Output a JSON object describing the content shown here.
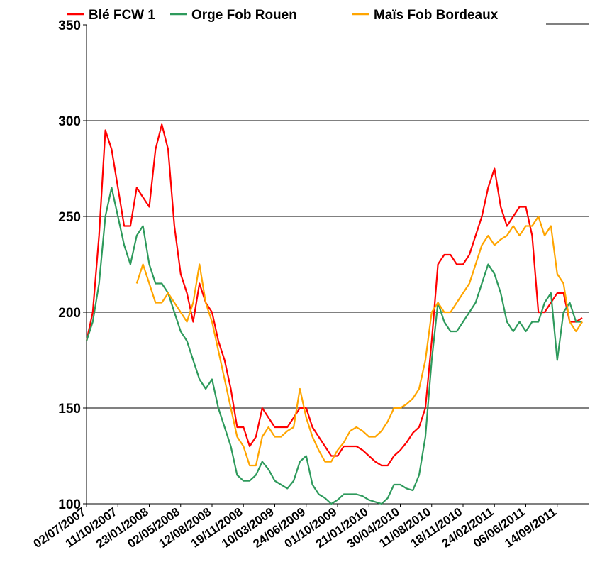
{
  "chart_data": {
    "type": "line",
    "categories": [
      "02/07/2007",
      null,
      null,
      null,
      null,
      "11/10/2007",
      null,
      null,
      null,
      null,
      "23/01/2008",
      null,
      null,
      null,
      null,
      "02/05/2008",
      null,
      null,
      null,
      null,
      "12/08/2008",
      null,
      null,
      null,
      null,
      "19/11/2008",
      null,
      null,
      null,
      null,
      "10/03/2009",
      null,
      null,
      null,
      null,
      "24/06/2009",
      null,
      null,
      null,
      null,
      "01/10/2009",
      null,
      null,
      null,
      null,
      "21/01/2010",
      null,
      null,
      null,
      null,
      "30/04/2010",
      null,
      null,
      null,
      null,
      "11/08/2010",
      null,
      null,
      null,
      null,
      "18/11/2010",
      null,
      null,
      null,
      null,
      "24/02/2011",
      null,
      null,
      null,
      null,
      "06/06/2011",
      null,
      null,
      null,
      null,
      "14/09/2011",
      null,
      null,
      null,
      null
    ],
    "series": [
      {
        "name": "Blé FCW 1",
        "color": "#ff0000",
        "values": [
          185,
          200,
          240,
          295,
          285,
          265,
          245,
          245,
          265,
          260,
          255,
          285,
          298,
          285,
          245,
          220,
          210,
          195,
          215,
          205,
          200,
          185,
          175,
          160,
          140,
          140,
          130,
          135,
          150,
          145,
          140,
          140,
          140,
          145,
          150,
          150,
          140,
          135,
          130,
          125,
          125,
          130,
          130,
          130,
          128,
          125,
          122,
          120,
          120,
          125,
          128,
          132,
          137,
          140,
          150,
          185,
          225,
          230,
          230,
          225,
          225,
          230,
          240,
          250,
          265,
          275,
          255,
          245,
          250,
          255,
          255,
          240,
          200,
          200,
          205,
          210,
          210,
          195,
          195,
          197
        ]
      },
      {
        "name": "Orge Fob Rouen",
        "color": "#2e9a5c",
        "values": [
          185,
          195,
          215,
          250,
          265,
          250,
          235,
          225,
          240,
          245,
          225,
          215,
          215,
          210,
          200,
          190,
          185,
          175,
          165,
          160,
          165,
          150,
          140,
          130,
          115,
          112,
          112,
          115,
          122,
          118,
          112,
          110,
          108,
          112,
          122,
          125,
          110,
          105,
          103,
          100,
          102,
          105,
          105,
          105,
          104,
          102,
          101,
          100,
          103,
          110,
          110,
          108,
          107,
          115,
          135,
          175,
          205,
          195,
          190,
          190,
          195,
          200,
          205,
          215,
          225,
          220,
          210,
          195,
          190,
          195,
          190,
          195,
          195,
          205,
          210,
          175,
          200,
          205,
          195,
          195
        ]
      },
      {
        "name": "Maïs Fob Bordeaux",
        "color": "#ffa500",
        "values": [
          null,
          null,
          null,
          null,
          null,
          null,
          null,
          null,
          215,
          225,
          215,
          205,
          205,
          210,
          205,
          200,
          195,
          205,
          225,
          205,
          195,
          180,
          165,
          150,
          135,
          130,
          120,
          120,
          135,
          140,
          135,
          135,
          138,
          140,
          160,
          145,
          135,
          128,
          122,
          122,
          128,
          132,
          138,
          140,
          138,
          135,
          135,
          138,
          143,
          150,
          150,
          152,
          155,
          160,
          175,
          200,
          205,
          200,
          200,
          205,
          210,
          215,
          225,
          235,
          240,
          235,
          238,
          240,
          245,
          240,
          245,
          245,
          250,
          240,
          245,
          220,
          215,
          195,
          190,
          195
        ]
      }
    ],
    "ylim": [
      100,
      350
    ],
    "yticks": [
      100,
      150,
      200,
      250,
      300,
      350
    ],
    "grid": true
  }
}
